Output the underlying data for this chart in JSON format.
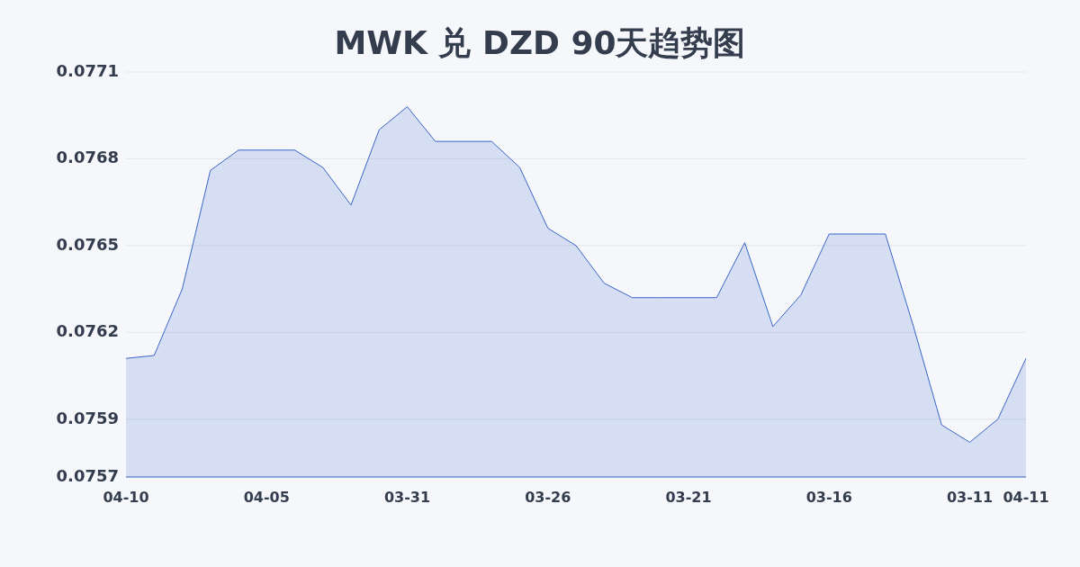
{
  "chart_data": {
    "type": "area",
    "title": "MWK 兑 DZD 90天趋势图",
    "categories": [
      "04-10",
      null,
      null,
      null,
      null,
      "04-05",
      null,
      null,
      null,
      null,
      "03-31",
      null,
      null,
      null,
      null,
      "03-26",
      null,
      null,
      null,
      null,
      "03-21",
      null,
      null,
      null,
      null,
      "03-16",
      null,
      null,
      null,
      null,
      "03-11",
      null,
      "04-11"
    ],
    "series": [
      {
        "color": "#3a66c8",
        "values": [
          0.07611,
          0.07612,
          0.07635,
          0.07676,
          0.07683,
          0.07683,
          0.07683,
          0.07677,
          0.07664,
          0.0769,
          0.07698,
          0.07686,
          0.07686,
          0.07686,
          0.07677,
          0.07656,
          0.0765,
          0.07637,
          0.07632,
          0.07632,
          0.07632,
          0.07632,
          0.07651,
          0.07622,
          0.07633,
          0.07654,
          0.07654,
          0.07654,
          0.07622,
          0.07588,
          0.07582,
          0.0759,
          0.07611
        ]
      }
    ],
    "ylim": [
      0.0757,
      0.0771
    ],
    "yticks": [
      0.0757,
      0.0759,
      0.0762,
      0.0765,
      0.0768,
      0.0771
    ],
    "grid": "y"
  }
}
